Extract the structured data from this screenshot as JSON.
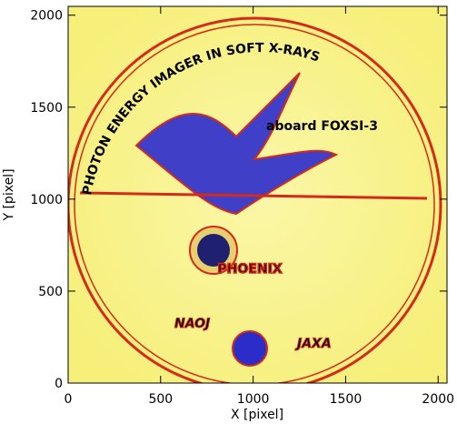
{
  "chart_data": {
    "type": "image",
    "xlabel": "X [pixel]",
    "ylabel": "Y [pixel]",
    "xlim": [
      0,
      2048
    ],
    "ylim": [
      0,
      2048
    ],
    "xticks": [
      0,
      500,
      1000,
      1500,
      2000
    ],
    "yticks": [
      0,
      500,
      1000,
      1500,
      2000
    ],
    "image_texts": {
      "ring": "PHOTON ENERGY IMAGER IN SOFT X-RAYS",
      "aboard": "aboard FOXSI-3",
      "name": "PHOENIX",
      "left_logo": "NAOJ",
      "right_logo": "JAXA"
    }
  }
}
